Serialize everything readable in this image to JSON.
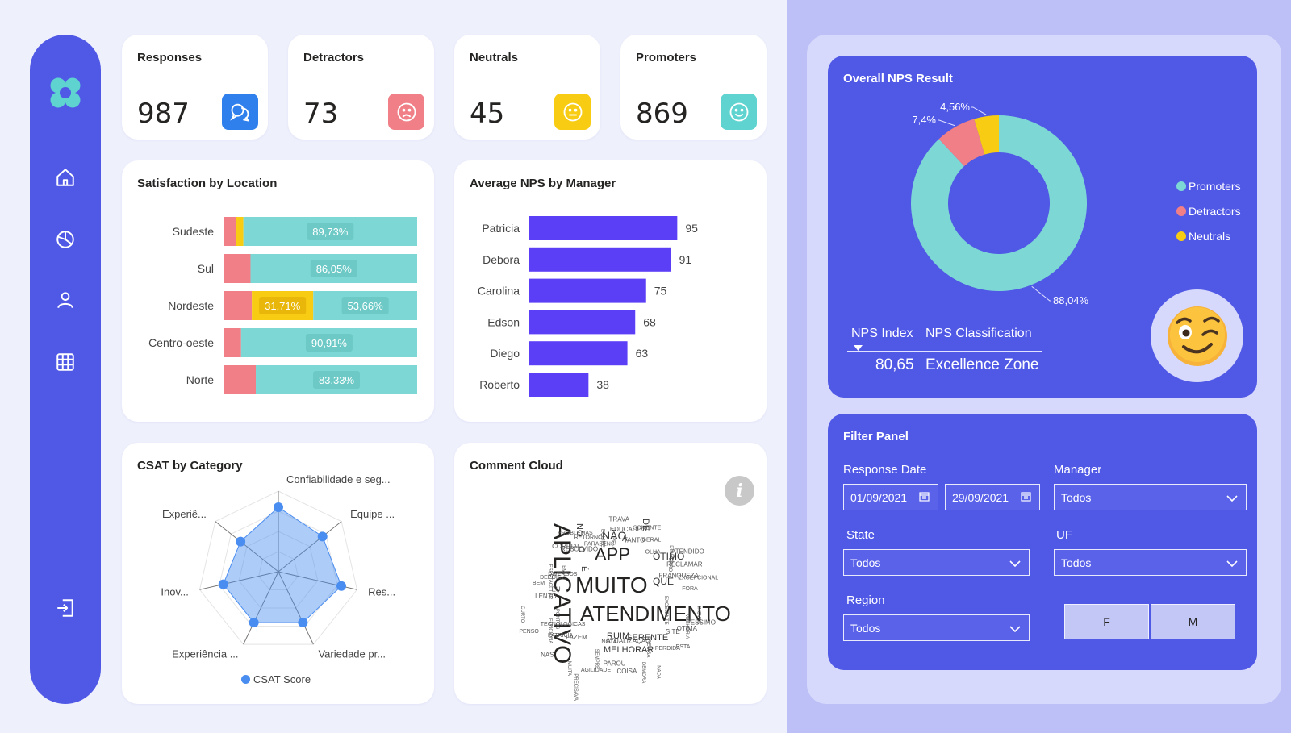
{
  "kpis": [
    {
      "title": "Responses",
      "value": "987",
      "icon": "chat-icon",
      "color": "#2f80ed"
    },
    {
      "title": "Detractors",
      "value": "73",
      "icon": "sad-face-icon",
      "color": "#f07f87"
    },
    {
      "title": "Neutrals",
      "value": "45",
      "icon": "neutral-face-icon",
      "color": "#f7cc12"
    },
    {
      "title": "Promoters",
      "value": "869",
      "icon": "happy-face-icon",
      "color": "#5ed3cf"
    }
  ],
  "satisfaction": {
    "title": "Satisfaction by Location",
    "chart_data": {
      "type": "bar",
      "orientation": "horizontal-stacked-100",
      "categories": [
        "Sudeste",
        "Sul",
        "Nordeste",
        "Centro-oeste",
        "Norte"
      ],
      "series": [
        {
          "name": "Detractors",
          "color": "#f07f87",
          "values": [
            6.5,
            13.95,
            14.63,
            9.09,
            16.67
          ]
        },
        {
          "name": "Neutrals",
          "color": "#f7cc12",
          "values": [
            3.77,
            0,
            31.71,
            0,
            0
          ]
        },
        {
          "name": "Promoters",
          "color": "#7dd8d5",
          "values": [
            89.73,
            86.05,
            53.66,
            90.91,
            83.33
          ]
        }
      ],
      "data_labels": [
        [
          "",
          "",
          "89,73%"
        ],
        [
          "",
          "",
          "86,05%"
        ],
        [
          "",
          "31,71%",
          "53,66%"
        ],
        [
          "",
          "",
          "90,91%"
        ],
        [
          "",
          "",
          "83,33%"
        ]
      ]
    }
  },
  "manager": {
    "title": "Average NPS by Manager",
    "chart_data": {
      "type": "bar",
      "orientation": "horizontal",
      "categories": [
        "Patricia",
        "Debora",
        "Carolina",
        "Edson",
        "Diego",
        "Roberto"
      ],
      "values": [
        95,
        91,
        75,
        68,
        63,
        38
      ],
      "color": "#5b3ff6",
      "xlim": [
        0,
        100
      ]
    }
  },
  "csat": {
    "title": "CSAT by Category",
    "legend": "CSAT Score",
    "chart_data": {
      "type": "radar",
      "categories": [
        "Confiabilidade e seg...",
        "Equipe ...",
        "Res...",
        "Variedade pr...",
        "Experiência ...",
        "Inov...",
        "Experiê..."
      ],
      "values": [
        0.8,
        0.7,
        0.8,
        0.7,
        0.7,
        0.7,
        0.6
      ],
      "color": "#4a8df0"
    }
  },
  "cloud": {
    "title": "Comment Cloud",
    "info_icon": "info-icon",
    "words": {
      "big": [
        "APLICATIVO",
        "MUITO",
        "ATENDIMENTO",
        "APP"
      ],
      "medium": [
        "NÃO",
        "QUE",
        "ÓTIMO",
        "RUIM",
        "GERENTE",
        "MELHORAR",
        "NO",
        "O",
        "DE",
        "É",
        "A"
      ],
      "small": [
        "EXCELENTE",
        "PATRICIA",
        "TRAVA",
        "PRECISA",
        "BEM",
        "ATENDIDO",
        "SEMPRE",
        "PROBLEMAS",
        "PESSIMO",
        "FUNCIONA",
        "SOMENTE",
        "ATUALIZAÇÃO",
        "ESPETACULAR",
        "EXCEPCIONAL",
        "FAZEM",
        "EQUIPE",
        "ESTA",
        "LENTO",
        "DIRETO",
        "NOTA",
        "CORDIAL",
        "INOVAR",
        "TECNOLOGICAS",
        "EDUCADOS",
        "NADA",
        "DEPOIS",
        "RECLAMAR",
        "PRECISAVA",
        "RETORNO",
        "OTIMA",
        "PONTOS",
        "GERAL",
        "COISA",
        "TEMPO",
        "FORA",
        "NAS",
        "PELA",
        "PERDIDA",
        "EU",
        "ERRO",
        "AGILIDADE",
        "RESOLVIDO",
        "MELHORIA",
        "PENSO",
        "TANTO",
        "DEMORA",
        "DIVERSOS",
        "FRANQUEZA",
        "MUITA",
        "PARABENS",
        "SITE",
        "CURTO",
        "OLHA",
        "PAROU"
      ]
    }
  },
  "nps": {
    "title": "Overall NPS Result",
    "chart_data": {
      "type": "pie",
      "donut": true,
      "labels": [
        "Promoters",
        "Detractors",
        "Neutrals"
      ],
      "values": [
        88.04,
        7.4,
        4.56
      ],
      "display_labels": [
        "88,04%",
        "7,4%",
        "4,56%"
      ],
      "colors": [
        "#7dd8d5",
        "#f07f87",
        "#f7cc12"
      ],
      "legend": "right"
    },
    "legend": [
      "Promoters",
      "Detractors",
      "Neutrals"
    ],
    "table": {
      "col1": "NPS Index",
      "col2": "NPS Classification",
      "val1": "80,65",
      "val2": "Excellence Zone"
    }
  },
  "filters": {
    "title": "Filter Panel",
    "response_date_label": "Response Date",
    "date_start": "01/09/2021",
    "date_end": "29/09/2021",
    "manager_label": "Manager",
    "manager_value": "Todos",
    "state_label": "State",
    "state_value": "Todos",
    "uf_label": "UF",
    "uf_value": "Todos",
    "region_label": "Region",
    "region_value": "Todos",
    "gender_f": "F",
    "gender_m": "M"
  }
}
